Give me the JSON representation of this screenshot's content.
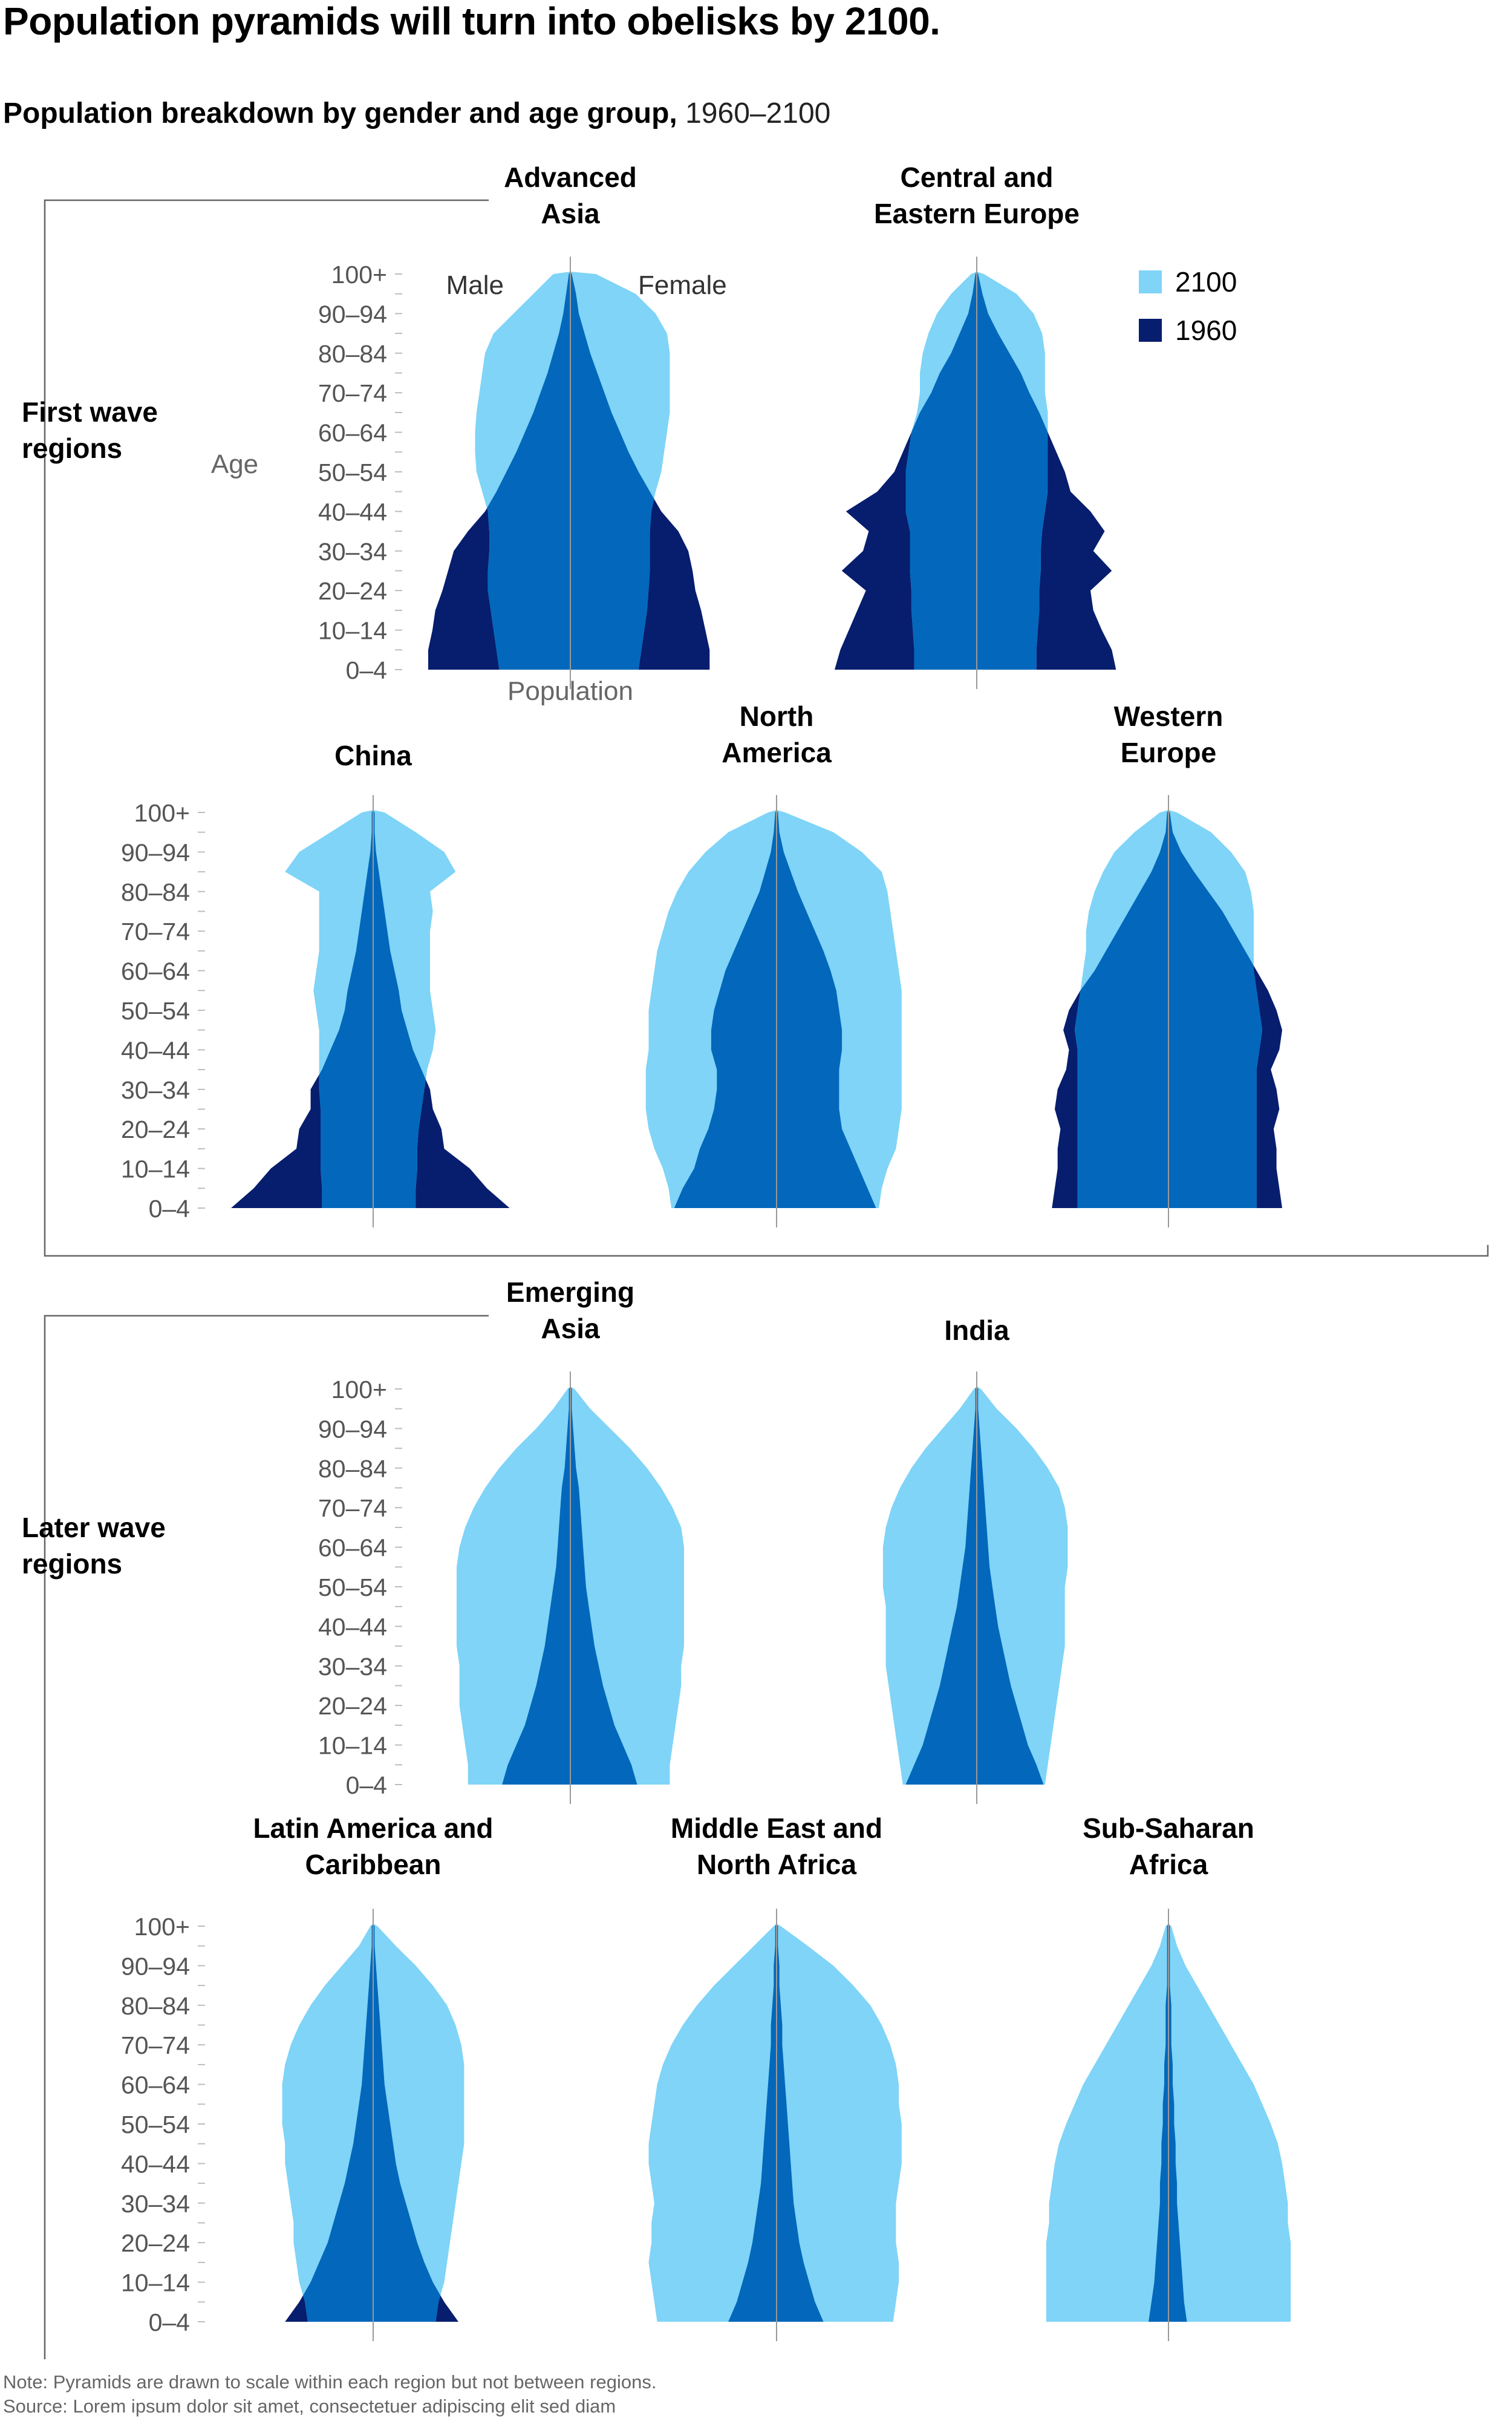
{
  "title": "Population pyramids will turn into obelisks by 2100.",
  "subtitle": {
    "bold": "Population breakdown by gender and age group,",
    "normal": "1960–2100"
  },
  "groups": [
    "First wave regions",
    "Later wave regions"
  ],
  "labels": {
    "male": "Male",
    "female": "Female",
    "age": "Age",
    "population": "Population"
  },
  "colors": {
    "y2100": "#7fd4f7",
    "overlap": "#0368bb",
    "y1960": "#071d6e",
    "axis": "#999999",
    "frame": "#666666"
  },
  "chart_data": {
    "type": "population-pyramid",
    "series": [
      {
        "name": "2100",
        "color": "#7fd4f7"
      },
      {
        "name": "1960",
        "color": "#071d6e"
      }
    ],
    "age_groups": [
      "0–4",
      "5–9",
      "10–14",
      "15–19",
      "20–24",
      "25–29",
      "30–34",
      "35–39",
      "40–44",
      "45–49",
      "50–54",
      "55–59",
      "60–64",
      "65–69",
      "70–74",
      "75–79",
      "80–84",
      "85–89",
      "90–94",
      "95–99",
      "100+"
    ],
    "age_tick_labels": [
      "0–4",
      "10–14",
      "20–24",
      "30–34",
      "40–44",
      "50–54",
      "60–64",
      "70–74",
      "80–84",
      "90–94",
      "100+"
    ],
    "scale_note": "relative share, peak of each region = 1.0",
    "regions": [
      {
        "name": "Advanced\nAsia",
        "group": "First wave regions",
        "y1960": {
          "male": [
            1.0,
            1.0,
            0.97,
            0.95,
            0.9,
            0.86,
            0.82,
            0.72,
            0.6,
            0.52,
            0.45,
            0.38,
            0.32,
            0.26,
            0.21,
            0.16,
            0.12,
            0.08,
            0.05,
            0.03,
            0.01
          ],
          "female": [
            0.98,
            0.98,
            0.95,
            0.92,
            0.88,
            0.86,
            0.83,
            0.76,
            0.64,
            0.56,
            0.48,
            0.41,
            0.35,
            0.29,
            0.24,
            0.19,
            0.14,
            0.1,
            0.06,
            0.04,
            0.01
          ]
        },
        "y2100": {
          "male": [
            0.5,
            0.52,
            0.54,
            0.56,
            0.58,
            0.58,
            0.57,
            0.57,
            0.58,
            0.62,
            0.66,
            0.67,
            0.67,
            0.66,
            0.64,
            0.62,
            0.6,
            0.54,
            0.4,
            0.26,
            0.12
          ],
          "female": [
            0.48,
            0.5,
            0.52,
            0.54,
            0.55,
            0.56,
            0.56,
            0.56,
            0.57,
            0.6,
            0.64,
            0.66,
            0.68,
            0.7,
            0.7,
            0.7,
            0.7,
            0.68,
            0.6,
            0.46,
            0.18
          ]
        }
      },
      {
        "name": "Central and\nEastern Europe",
        "group": "First wave regions",
        "y1960": {
          "male": [
            1.0,
            0.96,
            0.9,
            0.84,
            0.78,
            0.95,
            0.8,
            0.76,
            0.92,
            0.7,
            0.58,
            0.52,
            0.46,
            0.4,
            0.32,
            0.26,
            0.18,
            0.12,
            0.06,
            0.03,
            0.01
          ],
          "female": [
            0.98,
            0.95,
            0.88,
            0.82,
            0.8,
            0.95,
            0.82,
            0.9,
            0.8,
            0.66,
            0.62,
            0.56,
            0.5,
            0.44,
            0.37,
            0.31,
            0.23,
            0.15,
            0.08,
            0.04,
            0.01
          ]
        },
        "y2100": {
          "male": [
            0.44,
            0.44,
            0.45,
            0.46,
            0.46,
            0.47,
            0.47,
            0.47,
            0.5,
            0.5,
            0.5,
            0.48,
            0.46,
            0.42,
            0.4,
            0.4,
            0.38,
            0.34,
            0.28,
            0.18,
            0.04
          ],
          "female": [
            0.42,
            0.42,
            0.43,
            0.44,
            0.44,
            0.45,
            0.45,
            0.46,
            0.48,
            0.5,
            0.5,
            0.5,
            0.5,
            0.5,
            0.48,
            0.48,
            0.48,
            0.46,
            0.4,
            0.28,
            0.05
          ]
        }
      },
      {
        "name": "China",
        "group": "First wave regions",
        "y1960": {
          "male": [
            1.0,
            0.84,
            0.72,
            0.54,
            0.52,
            0.44,
            0.44,
            0.36,
            0.3,
            0.24,
            0.2,
            0.18,
            0.15,
            0.12,
            0.1,
            0.08,
            0.06,
            0.04,
            0.02,
            0.01,
            0.01
          ],
          "female": [
            0.96,
            0.8,
            0.68,
            0.5,
            0.48,
            0.42,
            0.4,
            0.34,
            0.28,
            0.24,
            0.2,
            0.18,
            0.15,
            0.12,
            0.1,
            0.08,
            0.06,
            0.04,
            0.02,
            0.01,
            0.01
          ]
        },
        "y2100": {
          "male": [
            0.36,
            0.36,
            0.37,
            0.37,
            0.37,
            0.37,
            0.38,
            0.38,
            0.38,
            0.38,
            0.4,
            0.42,
            0.4,
            0.38,
            0.38,
            0.38,
            0.38,
            0.62,
            0.52,
            0.3,
            0.08
          ],
          "female": [
            0.3,
            0.3,
            0.31,
            0.31,
            0.32,
            0.34,
            0.36,
            0.38,
            0.42,
            0.44,
            0.42,
            0.4,
            0.4,
            0.4,
            0.4,
            0.42,
            0.4,
            0.58,
            0.5,
            0.3,
            0.08
          ]
        }
      },
      {
        "name": "North\nAmerica",
        "group": "First wave regions",
        "y1960": {
          "male": [
            0.72,
            0.66,
            0.58,
            0.54,
            0.48,
            0.44,
            0.42,
            0.42,
            0.46,
            0.46,
            0.44,
            0.4,
            0.36,
            0.3,
            0.24,
            0.18,
            0.12,
            0.08,
            0.04,
            0.02,
            0.01
          ],
          "female": [
            0.7,
            0.64,
            0.58,
            0.52,
            0.46,
            0.44,
            0.44,
            0.44,
            0.46,
            0.46,
            0.44,
            0.42,
            0.38,
            0.33,
            0.27,
            0.21,
            0.15,
            0.1,
            0.05,
            0.02,
            0.01
          ]
        },
        "y2100": {
          "male": [
            0.74,
            0.76,
            0.8,
            0.86,
            0.9,
            0.92,
            0.92,
            0.92,
            0.9,
            0.9,
            0.9,
            0.88,
            0.86,
            0.84,
            0.8,
            0.76,
            0.7,
            0.62,
            0.5,
            0.34,
            0.06
          ],
          "female": [
            0.72,
            0.74,
            0.78,
            0.84,
            0.86,
            0.88,
            0.88,
            0.88,
            0.88,
            0.88,
            0.88,
            0.88,
            0.86,
            0.84,
            0.82,
            0.8,
            0.78,
            0.74,
            0.6,
            0.4,
            0.06
          ]
        }
      },
      {
        "name": "Western\nEurope",
        "group": "First wave regions",
        "y1960": {
          "male": [
            0.82,
            0.8,
            0.78,
            0.78,
            0.76,
            0.8,
            0.78,
            0.72,
            0.7,
            0.74,
            0.7,
            0.62,
            0.52,
            0.44,
            0.36,
            0.28,
            0.2,
            0.12,
            0.06,
            0.02,
            0.01
          ],
          "female": [
            0.8,
            0.78,
            0.76,
            0.76,
            0.74,
            0.78,
            0.76,
            0.72,
            0.78,
            0.8,
            0.76,
            0.7,
            0.62,
            0.54,
            0.46,
            0.38,
            0.28,
            0.18,
            0.09,
            0.03,
            0.01
          ]
        },
        "y2100": {
          "male": [
            0.64,
            0.64,
            0.64,
            0.64,
            0.64,
            0.64,
            0.64,
            0.64,
            0.64,
            0.66,
            0.64,
            0.62,
            0.6,
            0.58,
            0.58,
            0.56,
            0.52,
            0.46,
            0.38,
            0.24,
            0.06
          ],
          "female": [
            0.62,
            0.62,
            0.62,
            0.62,
            0.62,
            0.62,
            0.62,
            0.62,
            0.64,
            0.66,
            0.64,
            0.62,
            0.6,
            0.6,
            0.6,
            0.6,
            0.58,
            0.54,
            0.44,
            0.3,
            0.06
          ]
        }
      },
      {
        "name": "Emerging\nAsia",
        "group": "Later wave regions",
        "y1960": {
          "male": [
            0.48,
            0.44,
            0.38,
            0.32,
            0.28,
            0.24,
            0.21,
            0.18,
            0.16,
            0.14,
            0.12,
            0.1,
            0.09,
            0.08,
            0.07,
            0.06,
            0.04,
            0.03,
            0.02,
            0.01,
            0.01
          ],
          "female": [
            0.47,
            0.43,
            0.37,
            0.31,
            0.27,
            0.23,
            0.2,
            0.17,
            0.15,
            0.13,
            0.11,
            0.1,
            0.09,
            0.08,
            0.07,
            0.06,
            0.04,
            0.03,
            0.02,
            0.01,
            0.01
          ]
        },
        "y2100": {
          "male": [
            0.72,
            0.72,
            0.74,
            0.76,
            0.78,
            0.78,
            0.78,
            0.8,
            0.8,
            0.8,
            0.8,
            0.8,
            0.78,
            0.74,
            0.68,
            0.6,
            0.5,
            0.38,
            0.24,
            0.12,
            0.02
          ],
          "female": [
            0.7,
            0.7,
            0.72,
            0.74,
            0.76,
            0.78,
            0.78,
            0.8,
            0.8,
            0.8,
            0.8,
            0.8,
            0.8,
            0.78,
            0.72,
            0.64,
            0.54,
            0.42,
            0.28,
            0.14,
            0.03
          ]
        }
      },
      {
        "name": "India",
        "group": "Later wave regions",
        "y1960": {
          "male": [
            0.5,
            0.44,
            0.38,
            0.34,
            0.3,
            0.26,
            0.23,
            0.2,
            0.17,
            0.14,
            0.12,
            0.1,
            0.08,
            0.07,
            0.06,
            0.05,
            0.04,
            0.03,
            0.02,
            0.01,
            0.01
          ],
          "female": [
            0.47,
            0.42,
            0.36,
            0.32,
            0.28,
            0.24,
            0.21,
            0.18,
            0.15,
            0.13,
            0.11,
            0.09,
            0.08,
            0.07,
            0.06,
            0.05,
            0.04,
            0.03,
            0.02,
            0.01,
            0.01
          ]
        },
        "y2100": {
          "male": [
            0.52,
            0.54,
            0.56,
            0.58,
            0.6,
            0.62,
            0.64,
            0.64,
            0.64,
            0.64,
            0.66,
            0.66,
            0.66,
            0.64,
            0.6,
            0.54,
            0.46,
            0.36,
            0.24,
            0.12,
            0.02
          ],
          "female": [
            0.48,
            0.5,
            0.52,
            0.54,
            0.56,
            0.58,
            0.6,
            0.62,
            0.62,
            0.62,
            0.62,
            0.64,
            0.64,
            0.64,
            0.62,
            0.58,
            0.5,
            0.4,
            0.28,
            0.14,
            0.03
          ]
        }
      },
      {
        "name": "Latin America and\nCaribbean",
        "group": "Later wave regions",
        "y1960": {
          "male": [
            0.62,
            0.52,
            0.44,
            0.38,
            0.32,
            0.28,
            0.24,
            0.2,
            0.17,
            0.14,
            0.12,
            0.1,
            0.08,
            0.07,
            0.06,
            0.05,
            0.04,
            0.03,
            0.02,
            0.01,
            0.01
          ],
          "female": [
            0.6,
            0.5,
            0.42,
            0.36,
            0.31,
            0.27,
            0.23,
            0.19,
            0.16,
            0.14,
            0.12,
            0.1,
            0.08,
            0.07,
            0.06,
            0.05,
            0.04,
            0.03,
            0.02,
            0.01,
            0.01
          ]
        },
        "y2100": {
          "male": [
            0.46,
            0.48,
            0.52,
            0.54,
            0.56,
            0.56,
            0.58,
            0.6,
            0.62,
            0.62,
            0.64,
            0.64,
            0.64,
            0.62,
            0.58,
            0.52,
            0.44,
            0.34,
            0.22,
            0.1,
            0.02
          ],
          "female": [
            0.44,
            0.46,
            0.5,
            0.52,
            0.54,
            0.56,
            0.58,
            0.6,
            0.62,
            0.64,
            0.64,
            0.64,
            0.64,
            0.64,
            0.62,
            0.58,
            0.52,
            0.42,
            0.3,
            0.16,
            0.03
          ]
        }
      },
      {
        "name": "Middle East and\nNorth Africa",
        "group": "Later wave regions",
        "y1960": {
          "male": [
            0.34,
            0.28,
            0.24,
            0.2,
            0.17,
            0.15,
            0.13,
            0.11,
            0.1,
            0.09,
            0.08,
            0.07,
            0.06,
            0.05,
            0.04,
            0.04,
            0.03,
            0.02,
            0.02,
            0.01,
            0.01
          ],
          "female": [
            0.33,
            0.27,
            0.23,
            0.19,
            0.16,
            0.14,
            0.12,
            0.11,
            0.1,
            0.09,
            0.08,
            0.07,
            0.06,
            0.05,
            0.04,
            0.04,
            0.03,
            0.02,
            0.02,
            0.01,
            0.01
          ]
        },
        "y2100": {
          "male": [
            0.84,
            0.86,
            0.88,
            0.9,
            0.88,
            0.88,
            0.86,
            0.88,
            0.9,
            0.9,
            0.88,
            0.86,
            0.84,
            0.8,
            0.74,
            0.66,
            0.56,
            0.44,
            0.3,
            0.16,
            0.02
          ],
          "female": [
            0.82,
            0.84,
            0.86,
            0.86,
            0.84,
            0.84,
            0.84,
            0.86,
            0.88,
            0.88,
            0.88,
            0.86,
            0.86,
            0.84,
            0.8,
            0.74,
            0.66,
            0.54,
            0.4,
            0.22,
            0.03
          ]
        }
      },
      {
        "name": "Sub-Saharan\nAfrica",
        "group": "Later wave regions",
        "y1960": {
          "male": [
            0.14,
            0.12,
            0.1,
            0.09,
            0.08,
            0.07,
            0.06,
            0.06,
            0.05,
            0.05,
            0.04,
            0.04,
            0.03,
            0.03,
            0.02,
            0.02,
            0.02,
            0.01,
            0.01,
            0.01,
            0.01
          ],
          "female": [
            0.13,
            0.11,
            0.1,
            0.09,
            0.08,
            0.07,
            0.06,
            0.06,
            0.05,
            0.05,
            0.04,
            0.04,
            0.03,
            0.03,
            0.02,
            0.02,
            0.02,
            0.01,
            0.01,
            0.01,
            0.01
          ]
        },
        "y2100": {
          "male": [
            0.86,
            0.86,
            0.86,
            0.86,
            0.86,
            0.84,
            0.84,
            0.82,
            0.8,
            0.77,
            0.72,
            0.66,
            0.6,
            0.52,
            0.44,
            0.36,
            0.28,
            0.2,
            0.12,
            0.06,
            0.02
          ],
          "female": [
            0.86,
            0.86,
            0.86,
            0.86,
            0.86,
            0.84,
            0.84,
            0.82,
            0.8,
            0.77,
            0.72,
            0.66,
            0.6,
            0.52,
            0.44,
            0.36,
            0.28,
            0.2,
            0.12,
            0.06,
            0.02
          ]
        }
      }
    ]
  },
  "notes": {
    "note": "Note: Pyramids are drawn to scale within each region but not between regions.",
    "source": "Source: Lorem ipsum dolor sit amet, consectetuer adipiscing elit sed diam"
  }
}
